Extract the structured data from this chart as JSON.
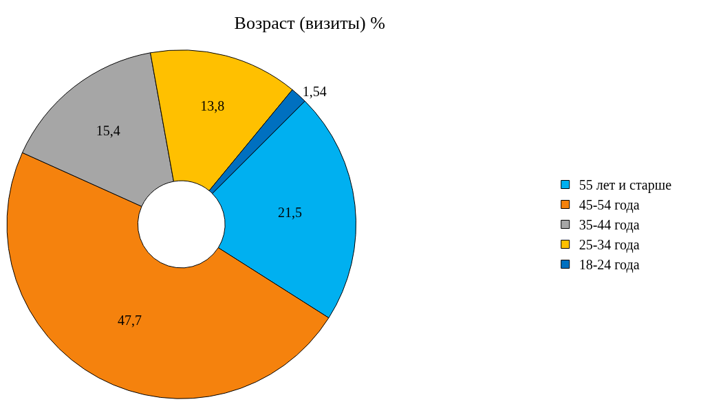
{
  "chart_data": {
    "type": "donut",
    "title": "Возраст (визиты) %",
    "categories": [
      "55 лет и старше",
      "45-54 года",
      "35-44 года",
      "25-34 года",
      "18-24 года"
    ],
    "values": [
      21.5,
      47.7,
      15.4,
      13.8,
      1.54
    ],
    "value_labels": [
      "21,5",
      "47,7",
      "15,4",
      "13,8",
      "1,54"
    ],
    "colors": [
      "#00b0f0",
      "#f5820d",
      "#a6a6a6",
      "#ffc000",
      "#0070c0"
    ],
    "legend": "right"
  }
}
